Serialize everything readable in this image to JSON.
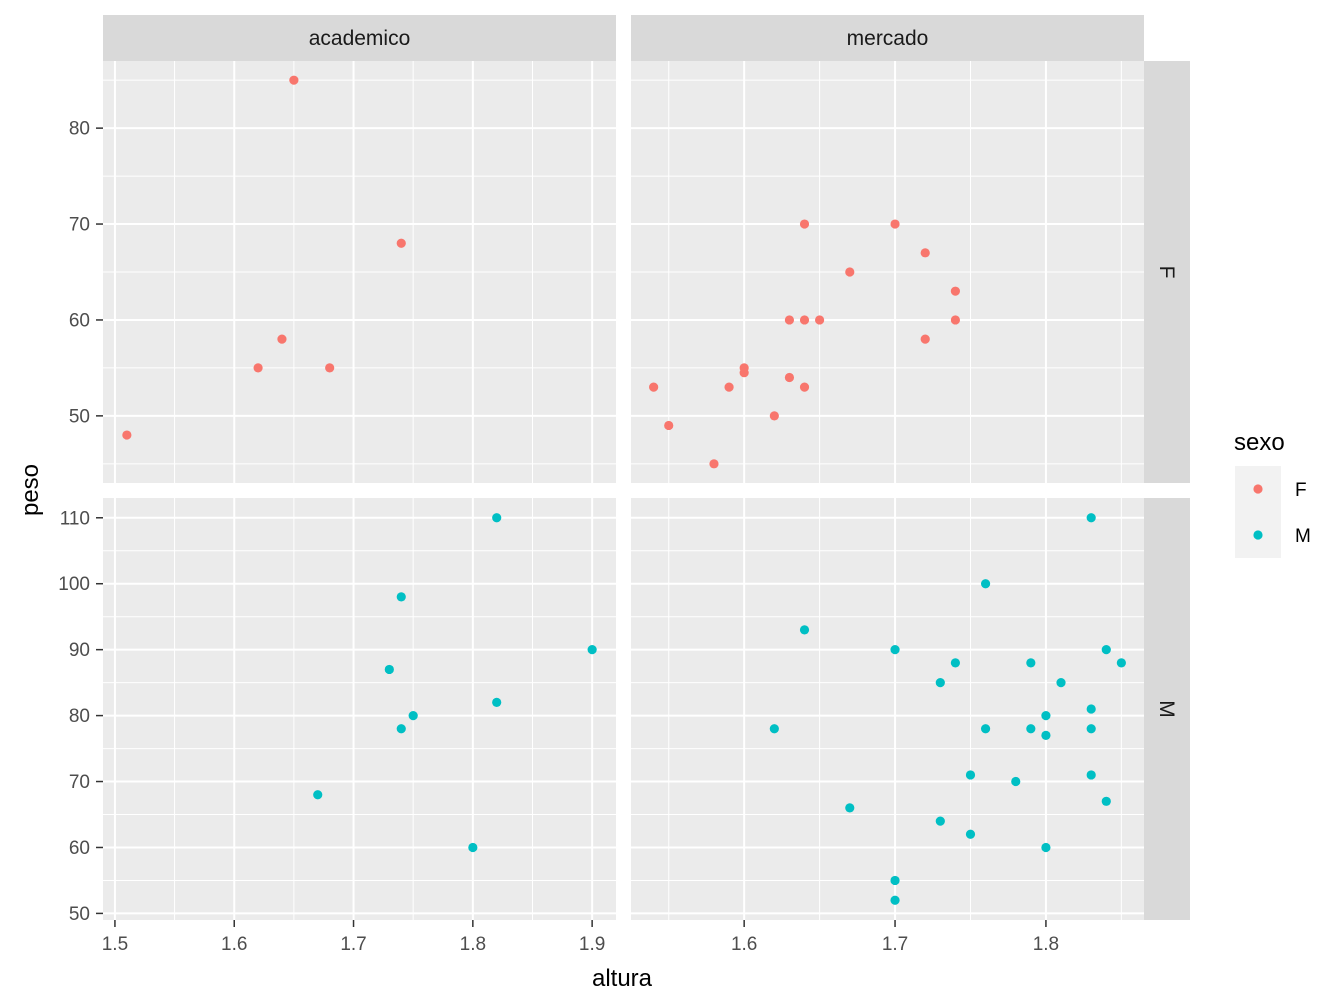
{
  "chart_data": {
    "type": "scatter",
    "xlabel": "altura",
    "ylabel": "peso",
    "facet_columns": [
      "academico",
      "mercado"
    ],
    "facet_rows": [
      "F",
      "M"
    ],
    "x_scale": "free",
    "y_scale": "free",
    "grid": true,
    "legend": {
      "title": "sexo",
      "placement": "right",
      "entries": [
        {
          "label": "F",
          "color": "#F8766D"
        },
        {
          "label": "M",
          "color": "#00BFC4"
        }
      ]
    },
    "columns": [
      {
        "name": "academico",
        "xlim": [
          1.49,
          1.92
        ],
        "xticks": [
          1.5,
          1.6,
          1.7,
          1.8,
          1.9
        ],
        "xtick_labels": [
          "1.5",
          "1.6",
          "1.7",
          "1.8",
          "1.9"
        ]
      },
      {
        "name": "mercado",
        "xlim": [
          1.525,
          1.865
        ],
        "xticks": [
          1.6,
          1.7,
          1.8
        ],
        "xtick_labels": [
          "1.6",
          "1.7",
          "1.8"
        ]
      }
    ],
    "rows": [
      {
        "name": "F",
        "ylim": [
          43.0,
          87.0
        ],
        "yticks": [
          50,
          60,
          70,
          80
        ],
        "ytick_labels": [
          "50",
          "60",
          "70",
          "80"
        ]
      },
      {
        "name": "M",
        "ylim": [
          49.0,
          113.0
        ],
        "yticks": [
          50,
          60,
          70,
          80,
          90,
          100,
          110
        ],
        "ytick_labels": [
          "50",
          "60",
          "70",
          "80",
          "90",
          "100",
          "110"
        ]
      }
    ],
    "panels": [
      {
        "column": "academico",
        "row": "F",
        "series": "F",
        "color": "#F8766D",
        "points": [
          [
            1.51,
            48
          ],
          [
            1.62,
            55
          ],
          [
            1.64,
            58
          ],
          [
            1.65,
            85
          ],
          [
            1.68,
            55
          ],
          [
            1.74,
            68
          ]
        ]
      },
      {
        "column": "mercado",
        "row": "F",
        "series": "F",
        "color": "#F8766D",
        "points": [
          [
            1.54,
            53
          ],
          [
            1.55,
            49
          ],
          [
            1.58,
            45
          ],
          [
            1.59,
            53
          ],
          [
            1.6,
            55
          ],
          [
            1.6,
            54.5
          ],
          [
            1.62,
            50
          ],
          [
            1.63,
            54
          ],
          [
            1.63,
            60
          ],
          [
            1.64,
            60
          ],
          [
            1.64,
            53
          ],
          [
            1.64,
            70
          ],
          [
            1.65,
            60
          ],
          [
            1.67,
            65
          ],
          [
            1.7,
            70
          ],
          [
            1.72,
            67
          ],
          [
            1.72,
            58
          ],
          [
            1.74,
            63
          ],
          [
            1.74,
            60
          ]
        ]
      },
      {
        "column": "academico",
        "row": "M",
        "series": "M",
        "color": "#00BFC4",
        "points": [
          [
            1.67,
            68
          ],
          [
            1.73,
            87
          ],
          [
            1.74,
            98
          ],
          [
            1.74,
            78
          ],
          [
            1.75,
            80
          ],
          [
            1.8,
            60
          ],
          [
            1.82,
            110
          ],
          [
            1.82,
            82
          ],
          [
            1.9,
            90
          ]
        ]
      },
      {
        "column": "mercado",
        "row": "M",
        "series": "M",
        "color": "#00BFC4",
        "points": [
          [
            1.62,
            78
          ],
          [
            1.64,
            93
          ],
          [
            1.67,
            66
          ],
          [
            1.7,
            90
          ],
          [
            1.7,
            55
          ],
          [
            1.7,
            52
          ],
          [
            1.73,
            85
          ],
          [
            1.73,
            64
          ],
          [
            1.74,
            88
          ],
          [
            1.75,
            71
          ],
          [
            1.75,
            62
          ],
          [
            1.76,
            100
          ],
          [
            1.76,
            78
          ],
          [
            1.78,
            70
          ],
          [
            1.79,
            88
          ],
          [
            1.79,
            78
          ],
          [
            1.8,
            80
          ],
          [
            1.8,
            77
          ],
          [
            1.8,
            60
          ],
          [
            1.81,
            85
          ],
          [
            1.83,
            110
          ],
          [
            1.83,
            81
          ],
          [
            1.83,
            78
          ],
          [
            1.83,
            71
          ],
          [
            1.84,
            90
          ],
          [
            1.84,
            67
          ],
          [
            1.85,
            88
          ]
        ]
      }
    ]
  }
}
